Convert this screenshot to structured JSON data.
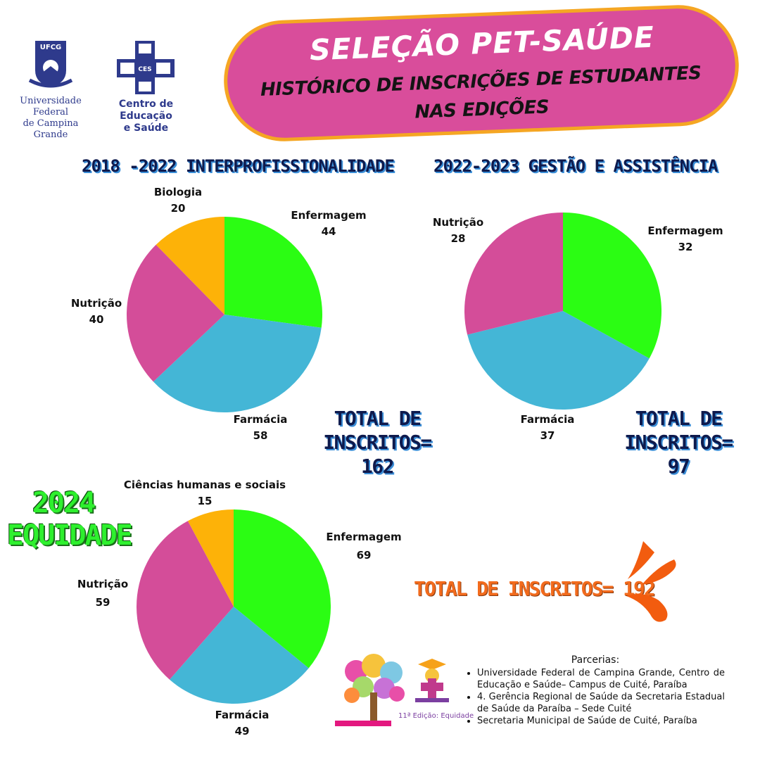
{
  "header": {
    "title": "SELEÇÃO PET-SAÚDE",
    "subtitle_line1": "HISTÓRICO DE INSCRIÇÕES DE ESTUDANTES",
    "subtitle_line2": "NAS EDIÇÕES"
  },
  "logos": {
    "ufcg_badge": "UFCG",
    "ufcg_name_line1": "Universidade Federal",
    "ufcg_name_line2": "de Campina Grande",
    "ces_badge": "CES",
    "ces_name_line1": "Centro de Educação",
    "ces_name_line2": "e Saúde",
    "edition_caption": "11ª Edição: Equidade"
  },
  "colors": {
    "green": "#2bfd13",
    "blue": "#44b6d6",
    "pink": "#d44d99",
    "orange": "#fdb208",
    "banner": "#d94d9b",
    "banner_border": "#f5a623"
  },
  "chart_data": [
    {
      "type": "pie",
      "title": "2018 -2022 INTERPROFISSIONALIDADE",
      "slices": [
        {
          "label": "Enfermagem",
          "value": 44,
          "color": "#2bfd13"
        },
        {
          "label": "Farmácia",
          "value": 58,
          "color": "#44b6d6"
        },
        {
          "label": "Nutrição",
          "value": 40,
          "color": "#d44d99"
        },
        {
          "label": "Biologia",
          "value": 20,
          "color": "#fdb208"
        }
      ],
      "total_line1": "TOTAL DE",
      "total_line2": "INSCRITOS= 162"
    },
    {
      "type": "pie",
      "title": "2022-2023 GESTÃO E ASSISTÊNCIA",
      "slices": [
        {
          "label": "Enfermagem",
          "value": 32,
          "color": "#2bfd13"
        },
        {
          "label": "Farmácia",
          "value": 37,
          "color": "#44b6d6"
        },
        {
          "label": "Nutrição",
          "value": 28,
          "color": "#d44d99"
        }
      ],
      "total_line1": "TOTAL DE",
      "total_line2": "INSCRITOS= 97"
    },
    {
      "type": "pie",
      "title_line1": "2024",
      "title_line2": "EQUIDADE",
      "slices": [
        {
          "label": "Enfermagem",
          "value": 69,
          "color": "#2bfd13"
        },
        {
          "label": "Farmácia",
          "value": 49,
          "color": "#44b6d6"
        },
        {
          "label": "Nutrição",
          "value": 59,
          "color": "#d44d99"
        },
        {
          "label": "Ciências humanas e sociais",
          "value": 15,
          "color": "#fdb208"
        }
      ],
      "total": "TOTAL DE INSCRITOS= 192"
    }
  ],
  "parcerias": {
    "title": "Parcerias:",
    "items": [
      "Universidade Federal de Campina Grande, Centro de Educação e Saúde– Campus de Cuité, Paraíba",
      "4. Gerência Regional de Saúde da Secretaria Estadual de Saúde da Paraíba – Sede Cuité",
      "Secretaria Municipal de Saúde de Cuité, Paraíba"
    ]
  }
}
